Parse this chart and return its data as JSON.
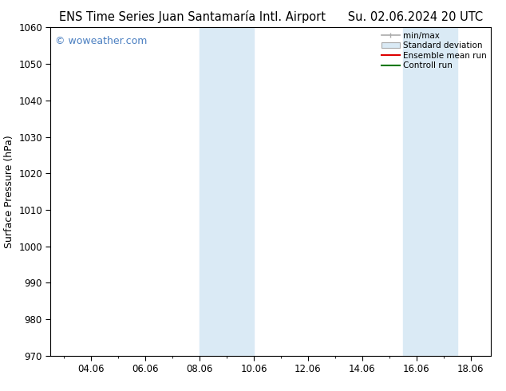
{
  "title_left": "ENS Time Series Juan Santamaría Intl. Airport",
  "title_right": "Su. 02.06.2024 20 UTC",
  "ylabel": "Surface Pressure (hPa)",
  "ylim": [
    970,
    1060
  ],
  "yticks": [
    970,
    980,
    990,
    1000,
    1010,
    1020,
    1030,
    1040,
    1050,
    1060
  ],
  "xlim_start": 2.5,
  "xlim_end": 18.75,
  "xtick_labels": [
    "04.06",
    "06.06",
    "08.06",
    "10.06",
    "12.06",
    "14.06",
    "16.06",
    "18.06"
  ],
  "xtick_positions": [
    4,
    6,
    8,
    10,
    12,
    14,
    16,
    18
  ],
  "shaded_bands": [
    {
      "x_start": 8.0,
      "x_end": 10.0
    },
    {
      "x_start": 15.5,
      "x_end": 17.5
    }
  ],
  "shade_color": "#daeaf5",
  "watermark_text": "© woweather.com",
  "watermark_color": "#4a7fc1",
  "bg_color": "#ffffff",
  "title_fontsize": 10.5,
  "axis_label_fontsize": 9,
  "tick_fontsize": 8.5,
  "legend_fontsize": 7.5
}
